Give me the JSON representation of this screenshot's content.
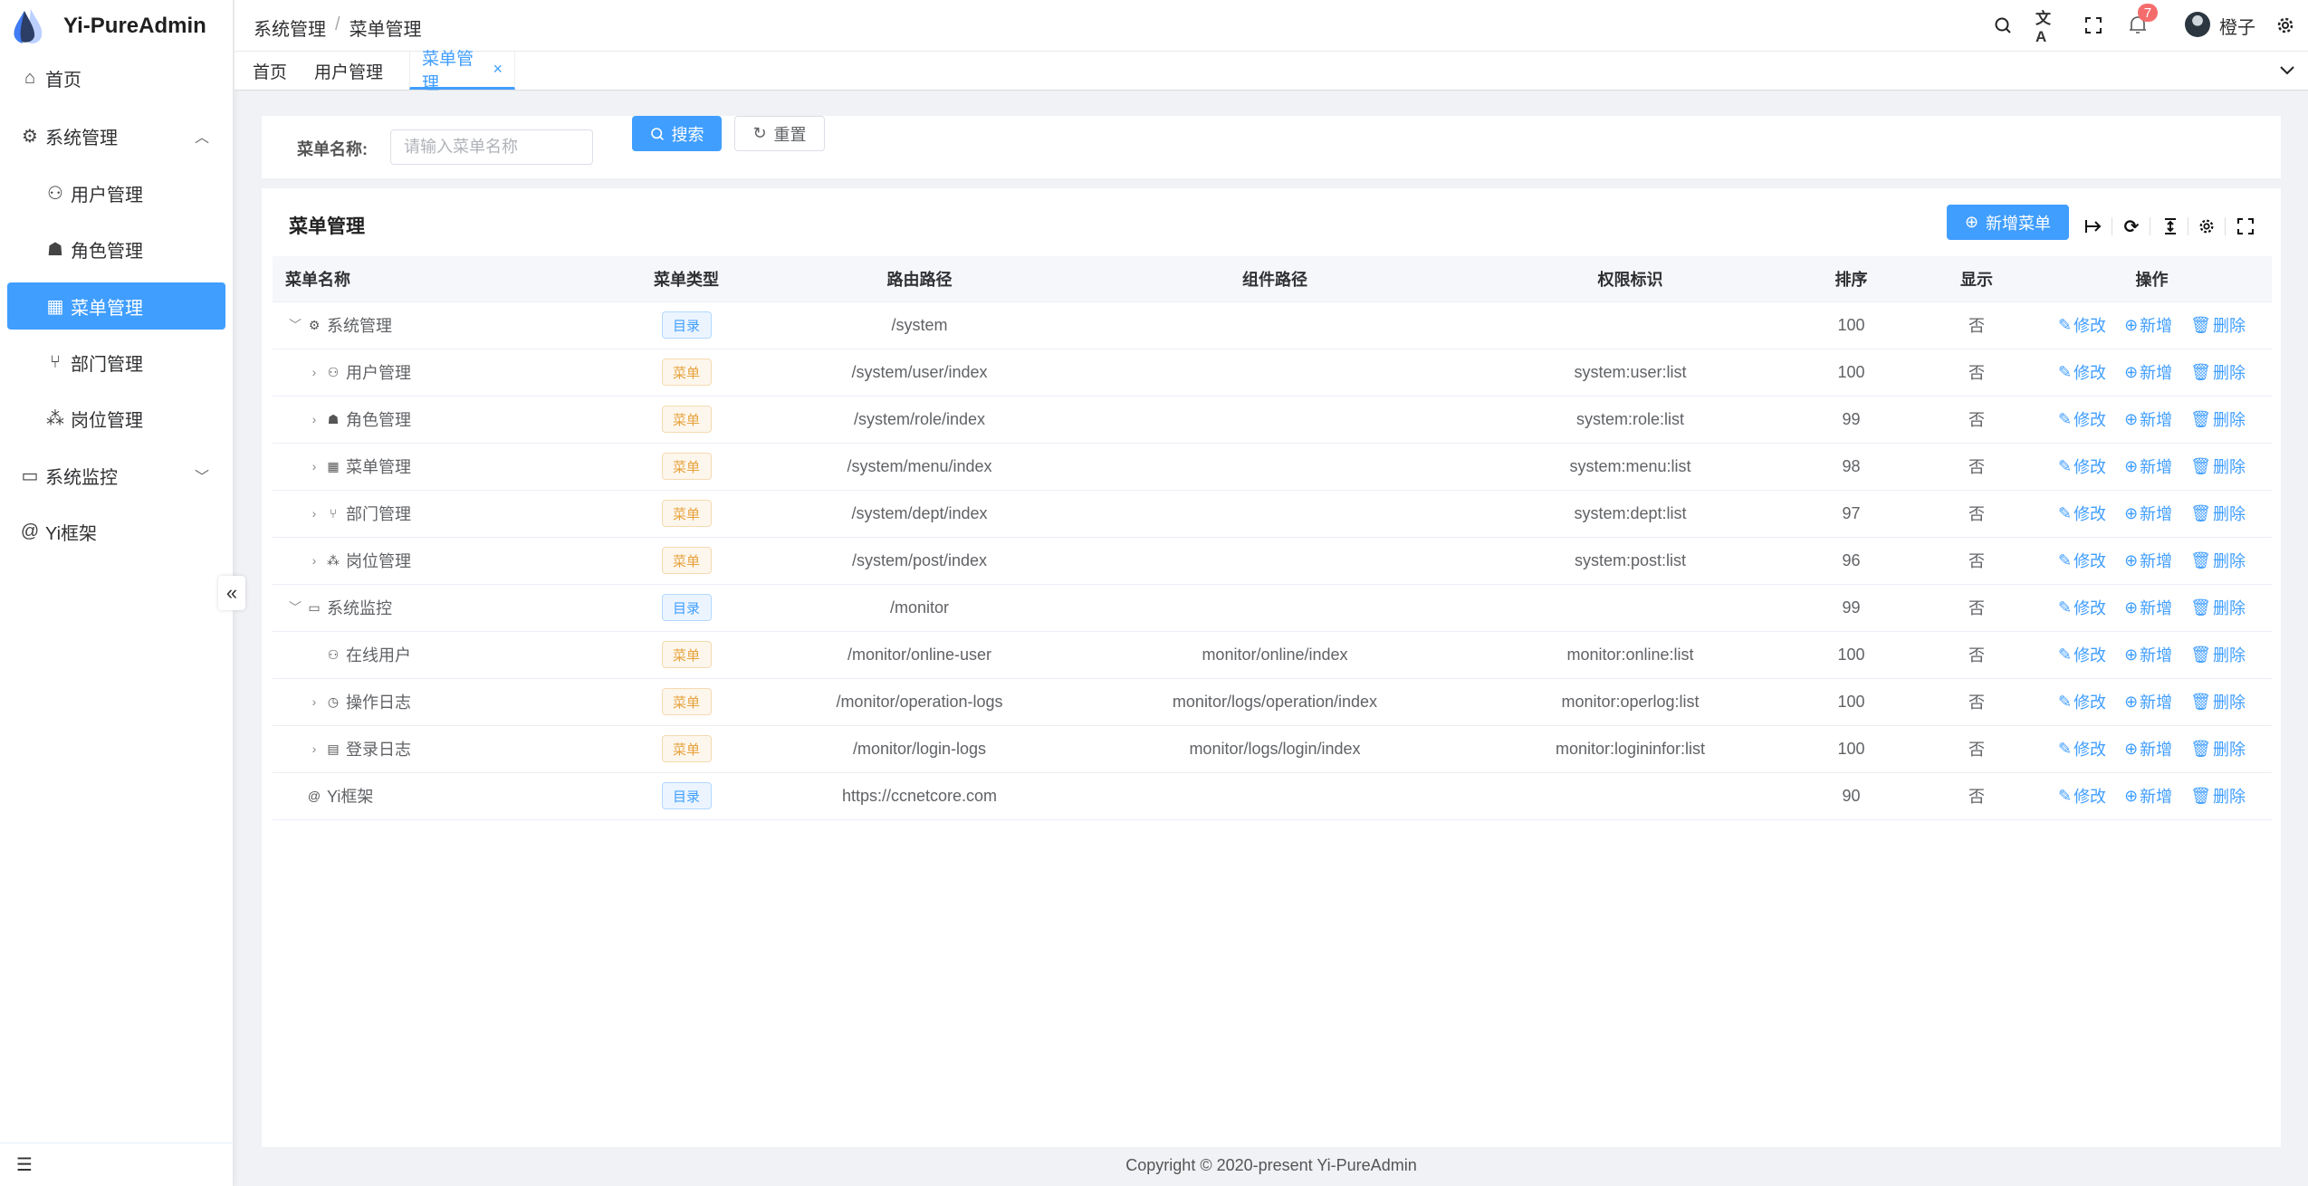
{
  "app": {
    "title": "Yi-PureAdmin"
  },
  "colors": {
    "primary": "#409eff",
    "warning": "#e6a23c",
    "danger_badge": "#f56c6c"
  },
  "sidebar": {
    "items": [
      {
        "label": "首页",
        "icon": "home-icon"
      },
      {
        "label": "系统管理",
        "icon": "gear-icon",
        "expanded": true
      },
      {
        "label": "用户管理",
        "icon": "user-icon"
      },
      {
        "label": "角色管理",
        "icon": "role-icon"
      },
      {
        "label": "菜单管理",
        "icon": "grid-icon",
        "active": true
      },
      {
        "label": "部门管理",
        "icon": "branch-icon"
      },
      {
        "label": "岗位管理",
        "icon": "org-icon"
      },
      {
        "label": "系统监控",
        "icon": "monitor-icon",
        "expanded": false
      },
      {
        "label": "Yi框架",
        "icon": "at-icon"
      }
    ],
    "collapse_label": "«"
  },
  "header": {
    "breadcrumb": [
      "系统管理",
      "菜单管理"
    ],
    "breadcrumb_sep": "/",
    "notification_count": "7",
    "username": "橙子"
  },
  "tabs": [
    {
      "label": "首页"
    },
    {
      "label": "用户管理"
    },
    {
      "label": "菜单管理",
      "active": true
    }
  ],
  "tab_close": "×",
  "search": {
    "label": "菜单名称:",
    "placeholder": "请输入菜单名称",
    "search_label": "搜索",
    "reset_label": "重置"
  },
  "table_card": {
    "title": "菜单管理",
    "add_label": "新增菜单"
  },
  "table": {
    "columns": [
      "菜单名称",
      "菜单类型",
      "路由路径",
      "组件路径",
      "权限标识",
      "排序",
      "显示",
      "操作"
    ],
    "rows": [
      {
        "name": "系统管理",
        "icon": "gear-icon",
        "level": 0,
        "expand": "down",
        "type": "目录",
        "kind": "dir",
        "path": "/system",
        "component": "",
        "perm": "",
        "sort": "100",
        "show": "否"
      },
      {
        "name": "用户管理",
        "icon": "user-icon",
        "level": 1,
        "expand": "right",
        "type": "菜单",
        "kind": "menu",
        "path": "/system/user/index",
        "component": "",
        "perm": "system:user:list",
        "sort": "100",
        "show": "否"
      },
      {
        "name": "角色管理",
        "icon": "role-icon",
        "level": 1,
        "expand": "right",
        "type": "菜单",
        "kind": "menu",
        "path": "/system/role/index",
        "component": "",
        "perm": "system:role:list",
        "sort": "99",
        "show": "否"
      },
      {
        "name": "菜单管理",
        "icon": "grid-icon",
        "level": 1,
        "expand": "right",
        "type": "菜单",
        "kind": "menu",
        "path": "/system/menu/index",
        "component": "",
        "perm": "system:menu:list",
        "sort": "98",
        "show": "否"
      },
      {
        "name": "部门管理",
        "icon": "branch-icon",
        "level": 1,
        "expand": "right",
        "type": "菜单",
        "kind": "menu",
        "path": "/system/dept/index",
        "component": "",
        "perm": "system:dept:list",
        "sort": "97",
        "show": "否"
      },
      {
        "name": "岗位管理",
        "icon": "org-icon",
        "level": 1,
        "expand": "right",
        "type": "菜单",
        "kind": "menu",
        "path": "/system/post/index",
        "component": "",
        "perm": "system:post:list",
        "sort": "96",
        "show": "否"
      },
      {
        "name": "系统监控",
        "icon": "monitor-icon",
        "level": 0,
        "expand": "down",
        "type": "目录",
        "kind": "dir",
        "path": "/monitor",
        "component": "",
        "perm": "",
        "sort": "99",
        "show": "否"
      },
      {
        "name": "在线用户",
        "icon": "online-user-icon",
        "level": 1,
        "expand": "",
        "type": "菜单",
        "kind": "menu",
        "path": "/monitor/online-user",
        "component": "monitor/online/index",
        "perm": "monitor:online:list",
        "sort": "100",
        "show": "否"
      },
      {
        "name": "操作日志",
        "icon": "history-icon",
        "level": 1,
        "expand": "right",
        "type": "菜单",
        "kind": "menu",
        "path": "/monitor/operation-logs",
        "component": "monitor/logs/operation/index",
        "perm": "monitor:operlog:list",
        "sort": "100",
        "show": "否"
      },
      {
        "name": "登录日志",
        "icon": "window-icon",
        "level": 1,
        "expand": "right",
        "type": "菜单",
        "kind": "menu",
        "path": "/monitor/login-logs",
        "component": "monitor/logs/login/index",
        "perm": "monitor:logininfor:list",
        "sort": "100",
        "show": "否"
      },
      {
        "name": "Yi框架",
        "icon": "at-icon",
        "level": 0,
        "expand": "",
        "type": "目录",
        "kind": "dir",
        "path": "https://ccnetcore.com",
        "component": "",
        "perm": "",
        "sort": "90",
        "show": "否"
      }
    ],
    "actions": {
      "edit": "修改",
      "add": "新增",
      "delete": "删除"
    }
  },
  "footer": {
    "text": "Copyright © 2020-present Yi-PureAdmin"
  }
}
